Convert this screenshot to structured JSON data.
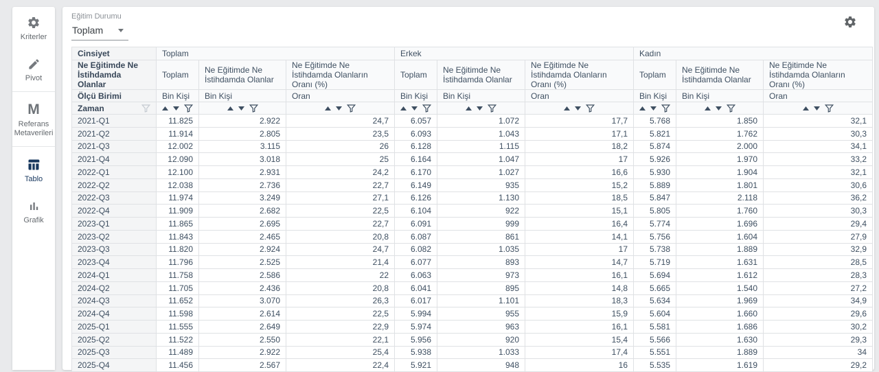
{
  "sidebar": {
    "items": [
      {
        "id": "kriterler",
        "label": "Kriterler",
        "icon": "gear-icon",
        "active": false,
        "divider_after": false
      },
      {
        "id": "pivot",
        "label": "Pivot",
        "icon": "pencil-icon",
        "active": false,
        "divider_after": true
      },
      {
        "id": "referans-metaverileri",
        "label": "Referans Metaverileri",
        "icon": "m-icon",
        "active": false,
        "divider_after": true
      },
      {
        "id": "tablo",
        "label": "Tablo",
        "icon": "table-icon",
        "active": true,
        "divider_after": false
      },
      {
        "id": "grafik",
        "label": "Grafik",
        "icon": "bar-chart-icon",
        "active": false,
        "divider_after": false
      }
    ]
  },
  "toolbar": {
    "filter_label": "Eğitim Durumu",
    "filter_value": "Toplam",
    "settings_icon": "gear-icon"
  },
  "table": {
    "corner": {
      "row1": "Cinsiyet",
      "row2": "Ne Eğitimde Ne İstihdamda Olanlar",
      "row3": "Ölçü Birimi",
      "row4": "Zaman"
    },
    "groups": [
      {
        "label": "Toplam"
      },
      {
        "label": "Erkek"
      },
      {
        "label": "Kadın"
      }
    ],
    "subcols": [
      "Toplam",
      "Ne Eğitimde Ne İstihdamda Olanlar",
      "Ne Eğitimde Ne İstihdamda Olanların Oranı (%)"
    ],
    "units": [
      "Bin Kişi",
      "Bin Kişi",
      "Oran"
    ],
    "rows": [
      {
        "zaman": "2021-Q1",
        "values": [
          "11.825",
          "2.922",
          "24,7",
          "6.057",
          "1.072",
          "17,7",
          "5.768",
          "1.850",
          "32,1"
        ]
      },
      {
        "zaman": "2021-Q2",
        "values": [
          "11.914",
          "2.805",
          "23,5",
          "6.093",
          "1.043",
          "17,1",
          "5.821",
          "1.762",
          "30,3"
        ]
      },
      {
        "zaman": "2021-Q3",
        "values": [
          "12.002",
          "3.115",
          "26",
          "6.128",
          "1.115",
          "18,2",
          "5.874",
          "2.000",
          "34,1"
        ]
      },
      {
        "zaman": "2021-Q4",
        "values": [
          "12.090",
          "3.018",
          "25",
          "6.164",
          "1.047",
          "17",
          "5.926",
          "1.970",
          "33,2"
        ]
      },
      {
        "zaman": "2022-Q1",
        "values": [
          "12.100",
          "2.931",
          "24,2",
          "6.170",
          "1.027",
          "16,6",
          "5.930",
          "1.904",
          "32,1"
        ]
      },
      {
        "zaman": "2022-Q2",
        "values": [
          "12.038",
          "2.736",
          "22,7",
          "6.149",
          "935",
          "15,2",
          "5.889",
          "1.801",
          "30,6"
        ]
      },
      {
        "zaman": "2022-Q3",
        "values": [
          "11.974",
          "3.249",
          "27,1",
          "6.126",
          "1.130",
          "18,5",
          "5.847",
          "2.118",
          "36,2"
        ]
      },
      {
        "zaman": "2022-Q4",
        "values": [
          "11.909",
          "2.682",
          "22,5",
          "6.104",
          "922",
          "15,1",
          "5.805",
          "1.760",
          "30,3"
        ]
      },
      {
        "zaman": "2023-Q1",
        "values": [
          "11.865",
          "2.695",
          "22,7",
          "6.091",
          "999",
          "16,4",
          "5.774",
          "1.696",
          "29,4"
        ]
      },
      {
        "zaman": "2023-Q2",
        "values": [
          "11.843",
          "2.465",
          "20,8",
          "6.087",
          "861",
          "14,1",
          "5.756",
          "1.604",
          "27,9"
        ]
      },
      {
        "zaman": "2023-Q3",
        "values": [
          "11.820",
          "2.924",
          "24,7",
          "6.082",
          "1.035",
          "17",
          "5.738",
          "1.889",
          "32,9"
        ]
      },
      {
        "zaman": "2023-Q4",
        "values": [
          "11.796",
          "2.525",
          "21,4",
          "6.077",
          "893",
          "14,7",
          "5.719",
          "1.631",
          "28,5"
        ]
      },
      {
        "zaman": "2024-Q1",
        "values": [
          "11.758",
          "2.586",
          "22",
          "6.063",
          "973",
          "16,1",
          "5.694",
          "1.612",
          "28,3"
        ]
      },
      {
        "zaman": "2024-Q2",
        "values": [
          "11.705",
          "2.436",
          "20,8",
          "6.041",
          "895",
          "14,8",
          "5.665",
          "1.540",
          "27,2"
        ]
      },
      {
        "zaman": "2024-Q3",
        "values": [
          "11.652",
          "3.070",
          "26,3",
          "6.017",
          "1.101",
          "18,3",
          "5.634",
          "1.969",
          "34,9"
        ]
      },
      {
        "zaman": "2024-Q4",
        "values": [
          "11.598",
          "2.614",
          "22,5",
          "5.994",
          "955",
          "15,9",
          "5.604",
          "1.660",
          "29,6"
        ]
      },
      {
        "zaman": "2025-Q1",
        "values": [
          "11.555",
          "2.649",
          "22,9",
          "5.974",
          "963",
          "16,1",
          "5.581",
          "1.686",
          "30,2"
        ]
      },
      {
        "zaman": "2025-Q2",
        "values": [
          "11.522",
          "2.550",
          "22,1",
          "5.956",
          "920",
          "15,4",
          "5.566",
          "1.630",
          "29,3"
        ]
      },
      {
        "zaman": "2025-Q3",
        "values": [
          "11.489",
          "2.922",
          "25,4",
          "5.938",
          "1.033",
          "17,4",
          "5.551",
          "1.889",
          "34"
        ]
      },
      {
        "zaman": "2025-Q4",
        "values": [
          "11.456",
          "2.567",
          "22,4",
          "5.921",
          "948",
          "16",
          "5.535",
          "1.619",
          "29,2"
        ]
      }
    ]
  }
}
